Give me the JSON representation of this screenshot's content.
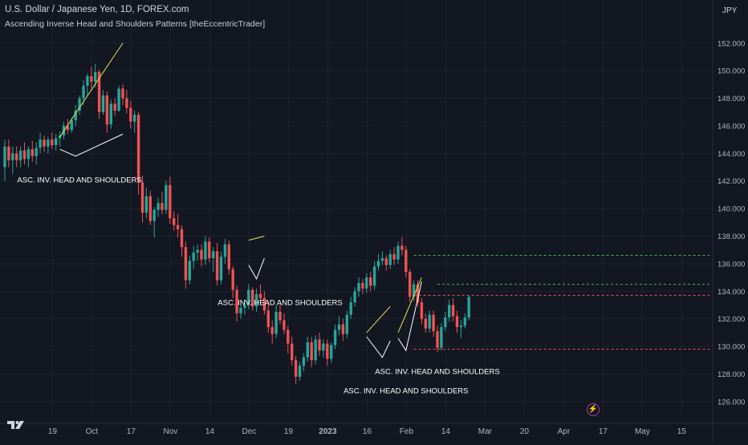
{
  "header": {
    "title": "U.S. Dollar / Japanese Yen, 1D, FOREX.com",
    "indicator": "Ascending Inverse Head and Shoulders Patterns [theEccentricTrader]",
    "currency": "JPY"
  },
  "bolt_icon": "lightning-icon",
  "logo_icon": "tradingview-logo",
  "colors": {
    "background": "#131722",
    "up": "#26a69a",
    "down": "#ef5350",
    "grid": "#1e222d",
    "text": "#d1d4dc",
    "green_level": "#4caf50",
    "red_level": "#ef5350",
    "pattern_left": "#e8e24c",
    "pattern_right": "#ffffff"
  },
  "chart_data": {
    "type": "candlestick",
    "title": "U.S. Dollar / Japanese Yen, 1D, FOREX.com",
    "ylabel": "JPY",
    "ylim": [
      125,
      152.8
    ],
    "y_ticks": [
      "152.000",
      "150.000",
      "148.000",
      "146.000",
      "144.000",
      "142.000",
      "140.000",
      "138.000",
      "136.000",
      "134.000",
      "132.000",
      "130.000",
      "128.000",
      "126.000"
    ],
    "y_tick_values": [
      152,
      150,
      148,
      146,
      144,
      142,
      140,
      138,
      136,
      134,
      132,
      130,
      128,
      126
    ],
    "x_ticks": [
      "19",
      "Oct",
      "17",
      "Nov",
      "14",
      "Dec",
      "19",
      "2023",
      "16",
      "Feb",
      "14",
      "Mar",
      "20",
      "Apr",
      "17",
      "May",
      "15"
    ],
    "x_tick_bars": [
      6,
      16,
      26,
      36,
      46,
      56,
      66,
      76,
      86,
      96,
      106,
      116,
      126,
      136,
      146,
      156,
      166
    ],
    "bold_tick": "2023",
    "series": [
      {
        "values": [
          [
            143.0,
            145.0,
            142.0,
            144.5
          ],
          [
            144.5,
            145.0,
            143.0,
            143.5
          ],
          [
            143.5,
            144.5,
            142.5,
            144.0
          ],
          [
            144.0,
            144.5,
            143.0,
            143.5
          ],
          [
            143.5,
            144.5,
            143.0,
            144.2
          ],
          [
            144.2,
            144.8,
            143.2,
            143.6
          ],
          [
            143.6,
            144.5,
            143.0,
            144.3
          ],
          [
            144.3,
            144.9,
            143.4,
            143.8
          ],
          [
            143.8,
            144.8,
            143.2,
            144.4
          ],
          [
            144.4,
            145.5,
            144.0,
            145.0
          ],
          [
            145.0,
            145.3,
            144.1,
            144.5
          ],
          [
            144.5,
            145.2,
            144.0,
            145.0
          ],
          [
            145.0,
            145.5,
            144.3,
            144.6
          ],
          [
            144.6,
            145.4,
            144.2,
            145.1
          ],
          [
            145.1,
            145.6,
            144.5,
            145.3
          ],
          [
            145.3,
            146.3,
            145.0,
            146.0
          ],
          [
            146.0,
            146.5,
            145.4,
            145.7
          ],
          [
            145.7,
            146.6,
            145.5,
            146.4
          ],
          [
            146.4,
            147.5,
            146.0,
            147.1
          ],
          [
            147.1,
            148.2,
            146.8,
            148.0
          ],
          [
            148.0,
            149.3,
            147.5,
            148.9
          ],
          [
            148.9,
            149.8,
            148.2,
            149.6
          ],
          [
            149.6,
            150.3,
            148.7,
            149.2
          ],
          [
            149.2,
            150.5,
            148.8,
            149.9
          ],
          [
            149.9,
            150.1,
            146.5,
            147.0
          ],
          [
            147.0,
            148.6,
            146.8,
            148.2
          ],
          [
            148.2,
            148.5,
            145.5,
            146.1
          ],
          [
            146.1,
            147.9,
            145.8,
            147.6
          ],
          [
            147.6,
            148.0,
            146.7,
            147.1
          ],
          [
            147.1,
            148.9,
            147.0,
            148.7
          ],
          [
            148.7,
            149.0,
            147.5,
            148.0
          ],
          [
            148.0,
            148.6,
            146.9,
            147.3
          ],
          [
            147.3,
            147.8,
            145.8,
            146.3
          ],
          [
            146.3,
            147.1,
            145.5,
            146.8
          ],
          [
            146.8,
            147.0,
            141.0,
            141.9
          ],
          [
            141.9,
            142.4,
            139.0,
            139.7
          ],
          [
            139.7,
            141.5,
            139.3,
            140.9
          ],
          [
            140.9,
            141.3,
            138.8,
            139.1
          ],
          [
            139.1,
            140.1,
            137.9,
            139.9
          ],
          [
            139.9,
            140.8,
            139.4,
            140.4
          ],
          [
            140.4,
            141.2,
            139.6,
            139.9
          ],
          [
            139.9,
            142.0,
            139.6,
            141.7
          ],
          [
            141.7,
            142.3,
            138.9,
            139.3
          ],
          [
            139.3,
            139.8,
            138.4,
            138.8
          ],
          [
            138.8,
            139.6,
            137.9,
            138.5
          ],
          [
            138.5,
            138.8,
            136.5,
            137.2
          ],
          [
            137.2,
            137.6,
            134.2,
            134.8
          ],
          [
            134.8,
            136.6,
            134.5,
            136.2
          ],
          [
            136.2,
            137.3,
            135.6,
            136.8
          ],
          [
            136.8,
            137.4,
            136.2,
            137.0
          ],
          [
            137.0,
            137.4,
            135.8,
            136.3
          ],
          [
            136.3,
            138.0,
            135.9,
            137.6
          ],
          [
            137.6,
            137.9,
            136.1,
            136.4
          ],
          [
            136.4,
            137.2,
            135.4,
            136.9
          ],
          [
            136.9,
            137.5,
            134.4,
            134.8
          ],
          [
            134.8,
            136.9,
            134.5,
            136.5
          ],
          [
            136.5,
            137.8,
            136.0,
            137.4
          ],
          [
            137.4,
            137.7,
            135.2,
            135.6
          ],
          [
            135.6,
            135.8,
            133.5,
            134.1
          ],
          [
            134.1,
            134.4,
            131.8,
            132.4
          ],
          [
            132.4,
            133.2,
            132.0,
            132.8
          ],
          [
            132.8,
            133.4,
            132.3,
            133.0
          ],
          [
            133.0,
            134.5,
            132.7,
            134.1
          ],
          [
            134.1,
            134.3,
            132.6,
            132.9
          ],
          [
            132.9,
            134.2,
            132.5,
            133.8
          ],
          [
            133.8,
            134.5,
            133.2,
            133.5
          ],
          [
            133.5,
            134.0,
            132.3,
            132.6
          ],
          [
            132.6,
            133.3,
            131.0,
            131.4
          ],
          [
            131.4,
            131.9,
            130.2,
            130.9
          ],
          [
            130.9,
            133.0,
            130.6,
            132.5
          ],
          [
            132.5,
            133.1,
            131.6,
            131.9
          ],
          [
            131.9,
            132.4,
            130.9,
            131.2
          ],
          [
            131.2,
            131.5,
            129.5,
            130.2
          ],
          [
            130.2,
            130.7,
            128.6,
            129.0
          ],
          [
            129.0,
            129.3,
            127.3,
            127.8
          ],
          [
            127.8,
            128.9,
            127.5,
            128.6
          ],
          [
            128.6,
            129.5,
            128.2,
            129.2
          ],
          [
            129.2,
            130.7,
            128.9,
            130.3
          ],
          [
            130.3,
            130.7,
            128.5,
            129.0
          ],
          [
            129.0,
            130.8,
            128.7,
            130.5
          ],
          [
            130.5,
            131.0,
            129.3,
            129.7
          ],
          [
            129.7,
            130.5,
            129.2,
            130.2
          ],
          [
            130.2,
            130.5,
            128.6,
            129.1
          ],
          [
            129.1,
            130.3,
            128.8,
            130.1
          ],
          [
            130.1,
            131.6,
            129.8,
            131.2
          ],
          [
            131.2,
            132.2,
            130.8,
            131.6
          ],
          [
            131.6,
            132.0,
            130.4,
            130.9
          ],
          [
            130.9,
            132.6,
            130.6,
            132.3
          ],
          [
            132.3,
            133.6,
            132.0,
            133.2
          ],
          [
            133.2,
            134.3,
            132.9,
            134.0
          ],
          [
            134.0,
            135.0,
            133.6,
            134.6
          ],
          [
            134.6,
            134.9,
            133.8,
            134.2
          ],
          [
            134.2,
            135.3,
            133.9,
            135.0
          ],
          [
            135.0,
            135.4,
            134.0,
            134.4
          ],
          [
            134.4,
            136.2,
            134.1,
            135.8
          ],
          [
            135.8,
            136.7,
            135.5,
            136.2
          ],
          [
            136.2,
            136.9,
            135.9,
            136.4
          ],
          [
            136.4,
            136.6,
            135.5,
            135.9
          ],
          [
            135.9,
            137.0,
            135.6,
            136.7
          ],
          [
            136.7,
            137.2,
            135.9,
            136.3
          ],
          [
            136.3,
            137.6,
            136.0,
            137.3
          ],
          [
            137.3,
            137.9,
            136.6,
            137.0
          ],
          [
            137.0,
            137.3,
            135.0,
            135.4
          ],
          [
            135.4,
            135.6,
            133.2,
            133.6
          ],
          [
            133.6,
            134.8,
            133.3,
            134.5
          ],
          [
            134.5,
            134.8,
            132.9,
            133.2
          ],
          [
            133.2,
            133.5,
            131.6,
            132.0
          ],
          [
            132.0,
            132.4,
            131.0,
            131.3
          ],
          [
            131.3,
            132.6,
            131.0,
            132.3
          ],
          [
            132.3,
            132.6,
            130.7,
            131.1
          ],
          [
            131.1,
            131.5,
            129.6,
            129.9
          ],
          [
            129.9,
            131.7,
            129.7,
            131.4
          ],
          [
            131.4,
            132.5,
            131.1,
            132.1
          ],
          [
            132.1,
            133.4,
            131.8,
            133.0
          ],
          [
            133.0,
            133.5,
            131.8,
            132.2
          ],
          [
            132.2,
            132.6,
            131.0,
            131.4
          ],
          [
            131.4,
            131.9,
            130.6,
            131.5
          ],
          [
            131.5,
            132.4,
            131.3,
            132.1
          ],
          [
            132.1,
            133.7,
            131.9,
            133.6
          ]
        ]
      }
    ],
    "levels": [
      {
        "value": 136.6,
        "from_bar": 104,
        "color": "green"
      },
      {
        "value": 134.5,
        "from_bar": 110,
        "color": "green"
      },
      {
        "value": 133.7,
        "from_bar": 104,
        "color": "red"
      },
      {
        "value": 129.8,
        "from_bar": 104,
        "color": "red"
      }
    ],
    "annotations": [
      {
        "text": "ASC. INV. HEAD AND SHOULDERS",
        "bar": 19,
        "price": 141.9
      },
      {
        "text": "ASC. INV. HEAD AND SHOULDERS",
        "bar": 70,
        "price": 133.0
      },
      {
        "text": "ASC. INV. HEAD AND SHOULDERS",
        "bar": 110,
        "price": 128.0
      },
      {
        "text": "ASC. INV. HEAD AND SHOULDERS",
        "bar": 102,
        "price": 126.6
      }
    ],
    "patterns": [
      {
        "left": [
          [
            14,
            145.2
          ],
          [
            30,
            152.0
          ]
        ],
        "right": [
          [
            14,
            144.3
          ],
          [
            18,
            143.8
          ],
          [
            30,
            145.4
          ]
        ]
      },
      {
        "left": [
          [
            62,
            137.7
          ],
          [
            66,
            138.0
          ]
        ],
        "right": [
          [
            62,
            135.9
          ],
          [
            64,
            134.9
          ],
          [
            66,
            136.4
          ]
        ]
      },
      {
        "left": [
          [
            92,
            131.0
          ],
          [
            98,
            132.9
          ]
        ],
        "right": [
          [
            92,
            130.7
          ],
          [
            96,
            129.2
          ],
          [
            98,
            130.4
          ]
        ]
      },
      {
        "left": [
          [
            100,
            131.0
          ],
          [
            106,
            135.0
          ]
        ],
        "right": [
          [
            100,
            130.6
          ],
          [
            102,
            129.7
          ],
          [
            106,
            134.7
          ]
        ]
      }
    ]
  }
}
